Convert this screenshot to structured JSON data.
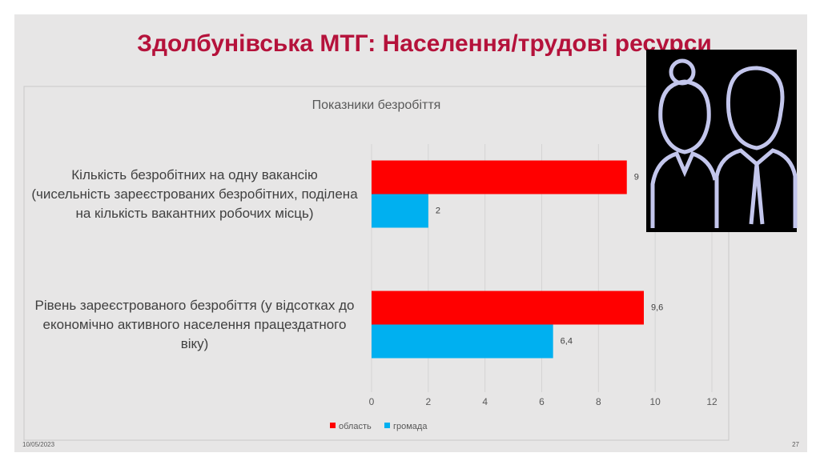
{
  "slide": {
    "title": "Здолбунівська МТГ: Населення/трудові ресурси",
    "date": "10/05/2023",
    "page_number": 27
  },
  "chart_data": {
    "type": "bar",
    "orientation": "horizontal",
    "title": "Показники безробіття",
    "categories": [
      "Кількість безробітних на одну вакансію (чисельність зареєстрованих безробітних, поділена на кількість вакантних робочих місць)",
      "Рівень зареєстрованого безробіття (у відсотках до економічно активного населення працездатного віку)"
    ],
    "series": [
      {
        "name": "область",
        "color": "#ff0000",
        "values": [
          9,
          9.6
        ],
        "value_labels": [
          "9",
          "9,6"
        ]
      },
      {
        "name": "громада",
        "color": "#00b0f0",
        "values": [
          2,
          6.4
        ],
        "value_labels": [
          "2",
          "6,4"
        ]
      }
    ],
    "xlim": [
      0,
      12
    ],
    "xticks": [
      0,
      2,
      4,
      6,
      8,
      10,
      12
    ],
    "grid": true,
    "legend": "bottom"
  }
}
